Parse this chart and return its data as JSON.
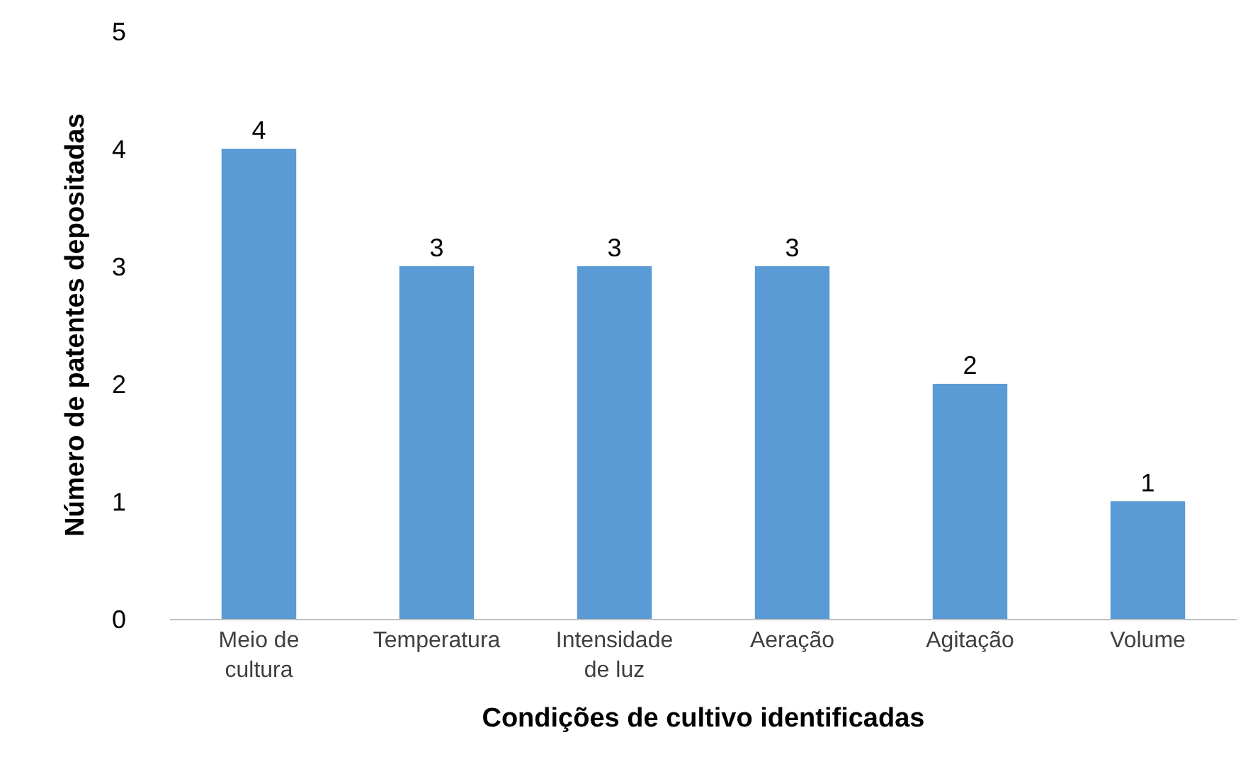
{
  "chart_data": {
    "type": "bar",
    "xlabel": "Condições de cultivo identificadas",
    "ylabel": "Número de patentes depositadas",
    "categories": [
      "Meio de\ncultura",
      "Temperatura",
      "Intensidade\nde luz",
      "Aeração",
      "Agitação",
      "Volume"
    ],
    "values": [
      4,
      3,
      3,
      3,
      2,
      1
    ],
    "color": "#5b9bd5",
    "ylim": [
      0,
      5
    ],
    "yticks": [
      0,
      1,
      2,
      3,
      4,
      5
    ],
    "grid": false,
    "data_labels": true
  }
}
